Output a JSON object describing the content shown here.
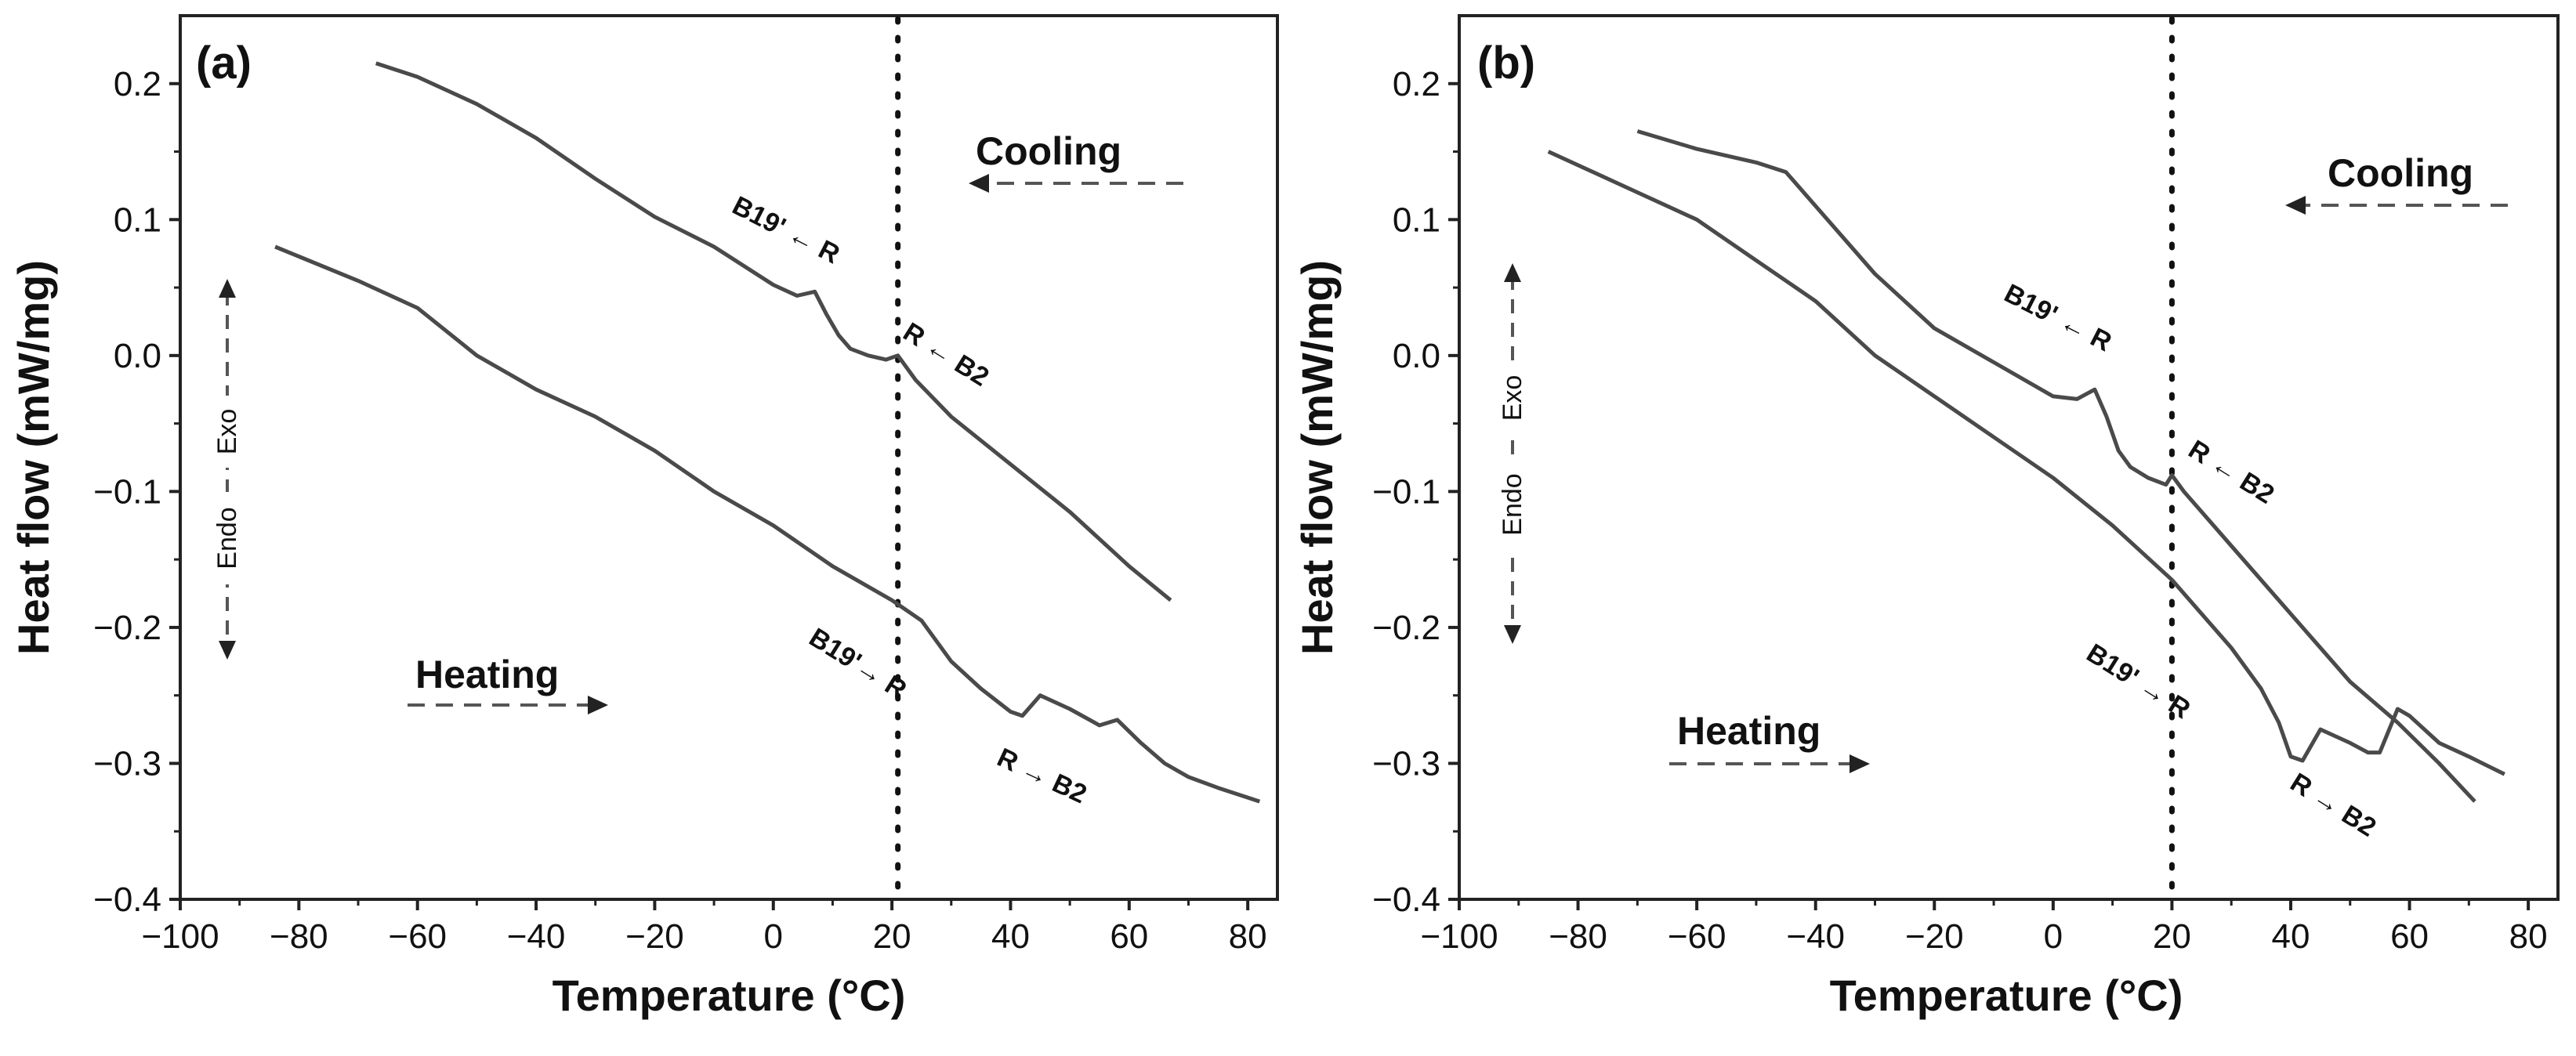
{
  "chart_data": [
    {
      "type": "line",
      "panel_label": "(a)",
      "title": "",
      "xlabel": "Temperature (°C)",
      "ylabel": "Heat flow (mW/mg)",
      "xlim": [
        -100,
        85
      ],
      "ylim": [
        -0.4,
        0.25
      ],
      "xticks": [
        -100,
        -80,
        -60,
        -40,
        -20,
        0,
        20,
        40,
        60,
        80
      ],
      "yticks": [
        -0.4,
        -0.3,
        -0.2,
        -0.1,
        0.0,
        0.1,
        0.2
      ],
      "xtick_labels": [
        "−100",
        "−80",
        "−60",
        "−40",
        "−20",
        "0",
        "20",
        "40",
        "60",
        "80"
      ],
      "ytick_labels": [
        "−0.4",
        "−0.3",
        "−0.2",
        "−0.1",
        "0.0",
        "0.1",
        "0.2"
      ],
      "vline_x": 21,
      "series": [
        {
          "name": "Cooling",
          "x": [
            -67,
            -60,
            -50,
            -40,
            -30,
            -20,
            -10,
            0,
            4,
            7,
            9,
            11,
            13,
            16,
            19,
            21,
            24,
            30,
            40,
            50,
            60,
            67
          ],
          "y": [
            0.215,
            0.205,
            0.185,
            0.16,
            0.13,
            0.102,
            0.08,
            0.052,
            0.044,
            0.047,
            0.03,
            0.015,
            0.005,
            0.0,
            -0.003,
            0.0,
            -0.018,
            -0.045,
            -0.08,
            -0.115,
            -0.155,
            -0.18
          ]
        },
        {
          "name": "Heating",
          "x": [
            -84,
            -70,
            -60,
            -50,
            -40,
            -30,
            -20,
            -10,
            0,
            10,
            20,
            25,
            30,
            35,
            40,
            42,
            45,
            50,
            55,
            58,
            62,
            66,
            70,
            75,
            82
          ],
          "y": [
            0.08,
            0.055,
            0.035,
            0.0,
            -0.025,
            -0.045,
            -0.07,
            -0.1,
            -0.125,
            -0.155,
            -0.18,
            -0.195,
            -0.225,
            -0.245,
            -0.262,
            -0.265,
            -0.25,
            -0.26,
            -0.272,
            -0.268,
            -0.285,
            -0.3,
            -0.31,
            -0.318,
            -0.328
          ]
        }
      ],
      "annotations": {
        "cooling_label": "Cooling",
        "heating_label": "Heating",
        "b19_from_r": "B19' ← R",
        "r_from_b2": "R ← B2",
        "b19_to_r": "B19'→ R",
        "r_to_b2": "R → B2",
        "exo": "Exo",
        "endo": "Endo"
      }
    },
    {
      "type": "line",
      "panel_label": "(b)",
      "title": "",
      "xlabel": "Temperature (°C)",
      "ylabel": "Heat flow (mW/mg)",
      "xlim": [
        -100,
        85
      ],
      "ylim": [
        -0.4,
        0.25
      ],
      "xticks": [
        -100,
        -80,
        -60,
        -40,
        -20,
        0,
        20,
        40,
        60,
        80
      ],
      "yticks": [
        -0.4,
        -0.3,
        -0.2,
        -0.1,
        0.0,
        0.1,
        0.2
      ],
      "xtick_labels": [
        "−100",
        "−80",
        "−60",
        "−40",
        "−20",
        "0",
        "20",
        "40",
        "60",
        "80"
      ],
      "ytick_labels": [
        "−0.4",
        "−0.3",
        "−0.2",
        "−0.1",
        "0.0",
        "0.1",
        "0.2"
      ],
      "vline_x": 20,
      "series": [
        {
          "name": "Cooling",
          "x": [
            -70,
            -60,
            -50,
            -45,
            -40,
            -30,
            -20,
            -10,
            0,
            4,
            7,
            9,
            11,
            13,
            16,
            19,
            20,
            22,
            30,
            40,
            50,
            58,
            65,
            71
          ],
          "y": [
            0.165,
            0.152,
            0.142,
            0.135,
            0.11,
            0.06,
            0.02,
            -0.005,
            -0.03,
            -0.032,
            -0.025,
            -0.045,
            -0.07,
            -0.082,
            -0.09,
            -0.095,
            -0.088,
            -0.1,
            -0.14,
            -0.19,
            -0.24,
            -0.27,
            -0.3,
            -0.328
          ]
        },
        {
          "name": "Heating",
          "x": [
            -85,
            -70,
            -60,
            -50,
            -40,
            -30,
            -20,
            -10,
            0,
            10,
            20,
            30,
            35,
            38,
            40,
            42,
            45,
            50,
            53,
            55,
            58,
            60,
            65,
            70,
            76
          ],
          "y": [
            0.15,
            0.12,
            0.1,
            0.07,
            0.04,
            0.0,
            -0.03,
            -0.06,
            -0.09,
            -0.125,
            -0.165,
            -0.215,
            -0.245,
            -0.27,
            -0.295,
            -0.298,
            -0.275,
            -0.285,
            -0.292,
            -0.292,
            -0.26,
            -0.265,
            -0.285,
            -0.295,
            -0.308
          ]
        }
      ],
      "annotations": {
        "cooling_label": "Cooling",
        "heating_label": "Heating",
        "b19_from_r": "B19' ← R",
        "r_from_b2": "R ← B2",
        "b19_to_r": "B19' → R",
        "r_to_b2": "R → B2",
        "exo": "Exo",
        "endo": "Endo"
      }
    }
  ],
  "colors": {
    "curve": "#4a4a4a",
    "axis": "#222222",
    "vline": "#111111",
    "arrow": "#555555"
  }
}
